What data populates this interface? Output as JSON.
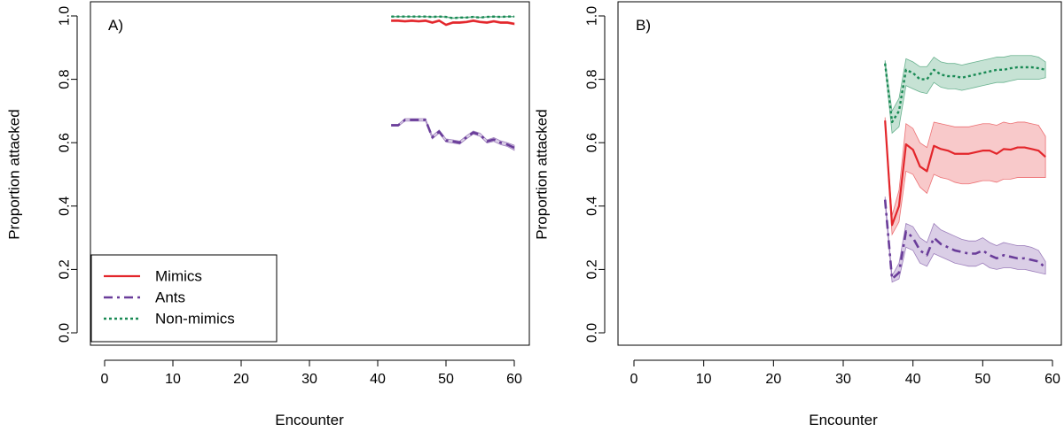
{
  "colors": {
    "Mimics": "#e3262b",
    "Ants": "#6a3d9a",
    "Non-mimics": "#1a8a55"
  },
  "legend": {
    "items": [
      "Mimics",
      "Ants",
      "Non-mimics"
    ],
    "placement": "bottom-left"
  },
  "chart_data": [
    {
      "type": "line",
      "panel_label": "A)",
      "xlabel": "Encounter",
      "ylabel": "Proportion attacked",
      "xlim": [
        0,
        60
      ],
      "ylim": [
        0,
        1
      ],
      "xticks": [
        "0",
        "10",
        "20",
        "30",
        "40",
        "50",
        "60"
      ],
      "yticks": [
        "0.0",
        "0.2",
        "0.4",
        "0.6",
        "0.8",
        "1.0"
      ],
      "grid": false,
      "legend": "bottom-left",
      "x": [
        42,
        43,
        44,
        45,
        46,
        47,
        48,
        49,
        50,
        51,
        52,
        53,
        54,
        55,
        56,
        57,
        58,
        59,
        60
      ],
      "series": [
        {
          "name": "Mimics",
          "values": [
            0.985,
            0.985,
            0.983,
            0.985,
            0.983,
            0.985,
            0.979,
            0.985,
            0.972,
            0.979,
            0.979,
            0.981,
            0.985,
            0.981,
            0.979,
            0.983,
            0.979,
            0.979,
            0.975
          ],
          "ci_low": [
            0.982,
            0.982,
            0.98,
            0.982,
            0.98,
            0.982,
            0.976,
            0.982,
            0.969,
            0.976,
            0.976,
            0.978,
            0.982,
            0.978,
            0.976,
            0.98,
            0.976,
            0.976,
            0.972
          ],
          "ci_high": [
            0.988,
            0.988,
            0.986,
            0.988,
            0.986,
            0.988,
            0.982,
            0.988,
            0.975,
            0.982,
            0.982,
            0.984,
            0.988,
            0.984,
            0.982,
            0.986,
            0.982,
            0.982,
            0.978
          ]
        },
        {
          "name": "Ants",
          "values": [
            0.655,
            0.655,
            0.672,
            0.672,
            0.672,
            0.672,
            0.617,
            0.635,
            0.607,
            0.604,
            0.6,
            0.617,
            0.632,
            0.625,
            0.604,
            0.61,
            0.6,
            0.594,
            0.584
          ],
          "ci_low": [
            0.652,
            0.652,
            0.668,
            0.668,
            0.668,
            0.668,
            0.612,
            0.63,
            0.602,
            0.599,
            0.595,
            0.612,
            0.627,
            0.62,
            0.599,
            0.604,
            0.594,
            0.588,
            0.576
          ],
          "ci_high": [
            0.658,
            0.658,
            0.676,
            0.676,
            0.676,
            0.676,
            0.622,
            0.64,
            0.612,
            0.609,
            0.605,
            0.622,
            0.637,
            0.63,
            0.609,
            0.616,
            0.606,
            0.6,
            0.592
          ]
        },
        {
          "name": "Non-mimics",
          "values": [
            0.998,
            0.998,
            0.998,
            0.998,
            0.998,
            0.998,
            0.997,
            0.998,
            0.997,
            0.993,
            0.995,
            0.995,
            0.997,
            0.995,
            0.997,
            0.998,
            0.997,
            0.998,
            0.998
          ],
          "ci_low": [
            0.997,
            0.997,
            0.997,
            0.997,
            0.997,
            0.997,
            0.996,
            0.997,
            0.996,
            0.992,
            0.994,
            0.994,
            0.996,
            0.994,
            0.996,
            0.997,
            0.996,
            0.997,
            0.997
          ],
          "ci_high": [
            0.999,
            0.999,
            0.999,
            0.999,
            0.999,
            0.999,
            0.998,
            0.999,
            0.998,
            0.994,
            0.996,
            0.996,
            0.998,
            0.996,
            0.998,
            0.999,
            0.998,
            0.999,
            0.999
          ]
        }
      ]
    },
    {
      "type": "line",
      "panel_label": "B)",
      "xlabel": "Encounter",
      "ylabel": "Proportion attacked",
      "xlim": [
        0,
        60
      ],
      "ylim": [
        0,
        1
      ],
      "xticks": [
        "0",
        "10",
        "20",
        "30",
        "40",
        "50",
        "60"
      ],
      "yticks": [
        "0.0",
        "0.2",
        "0.4",
        "0.6",
        "0.8",
        "1.0"
      ],
      "grid": false,
      "x": [
        36,
        37,
        38,
        39,
        40,
        41,
        42,
        43,
        44,
        45,
        46,
        47,
        48,
        49,
        50,
        51,
        52,
        53,
        54,
        55,
        56,
        57,
        58,
        59
      ],
      "series": [
        {
          "name": "Mimics",
          "values": [
            0.67,
            0.34,
            0.4,
            0.595,
            0.578,
            0.525,
            0.51,
            0.59,
            0.58,
            0.575,
            0.565,
            0.565,
            0.565,
            0.57,
            0.575,
            0.575,
            0.565,
            0.58,
            0.578,
            0.585,
            0.585,
            0.58,
            0.575,
            0.555
          ],
          "ci_low": [
            0.66,
            0.31,
            0.35,
            0.51,
            0.5,
            0.46,
            0.44,
            0.5,
            0.49,
            0.485,
            0.475,
            0.47,
            0.47,
            0.475,
            0.48,
            0.48,
            0.475,
            0.485,
            0.485,
            0.49,
            0.49,
            0.49,
            0.49,
            0.49
          ],
          "ci_high": [
            0.68,
            0.37,
            0.45,
            0.66,
            0.645,
            0.6,
            0.585,
            0.665,
            0.66,
            0.655,
            0.65,
            0.65,
            0.65,
            0.655,
            0.66,
            0.66,
            0.655,
            0.665,
            0.66,
            0.665,
            0.665,
            0.66,
            0.655,
            0.62
          ]
        },
        {
          "name": "Ants",
          "values": [
            0.42,
            0.17,
            0.19,
            0.32,
            0.3,
            0.26,
            0.245,
            0.3,
            0.28,
            0.27,
            0.26,
            0.255,
            0.25,
            0.25,
            0.26,
            0.245,
            0.235,
            0.245,
            0.24,
            0.235,
            0.235,
            0.23,
            0.225,
            0.205
          ],
          "ci_low": [
            0.41,
            0.16,
            0.17,
            0.27,
            0.26,
            0.22,
            0.21,
            0.25,
            0.24,
            0.23,
            0.22,
            0.215,
            0.21,
            0.21,
            0.22,
            0.205,
            0.2,
            0.205,
            0.205,
            0.2,
            0.2,
            0.195,
            0.19,
            0.185
          ],
          "ci_high": [
            0.43,
            0.18,
            0.22,
            0.345,
            0.335,
            0.3,
            0.285,
            0.345,
            0.325,
            0.315,
            0.305,
            0.295,
            0.29,
            0.29,
            0.3,
            0.285,
            0.275,
            0.285,
            0.28,
            0.275,
            0.275,
            0.27,
            0.26,
            0.225
          ]
        },
        {
          "name": "Non-mimics",
          "values": [
            0.85,
            0.665,
            0.7,
            0.83,
            0.82,
            0.8,
            0.8,
            0.83,
            0.815,
            0.81,
            0.81,
            0.805,
            0.81,
            0.815,
            0.82,
            0.825,
            0.83,
            0.83,
            0.835,
            0.838,
            0.838,
            0.838,
            0.835,
            0.83
          ],
          "ci_low": [
            0.84,
            0.63,
            0.65,
            0.78,
            0.77,
            0.76,
            0.755,
            0.79,
            0.775,
            0.77,
            0.77,
            0.765,
            0.77,
            0.775,
            0.78,
            0.785,
            0.79,
            0.79,
            0.795,
            0.8,
            0.8,
            0.8,
            0.8,
            0.805
          ],
          "ci_high": [
            0.86,
            0.7,
            0.74,
            0.865,
            0.855,
            0.84,
            0.84,
            0.87,
            0.855,
            0.85,
            0.85,
            0.845,
            0.85,
            0.855,
            0.86,
            0.865,
            0.87,
            0.87,
            0.875,
            0.875,
            0.875,
            0.875,
            0.87,
            0.855
          ]
        }
      ]
    }
  ]
}
